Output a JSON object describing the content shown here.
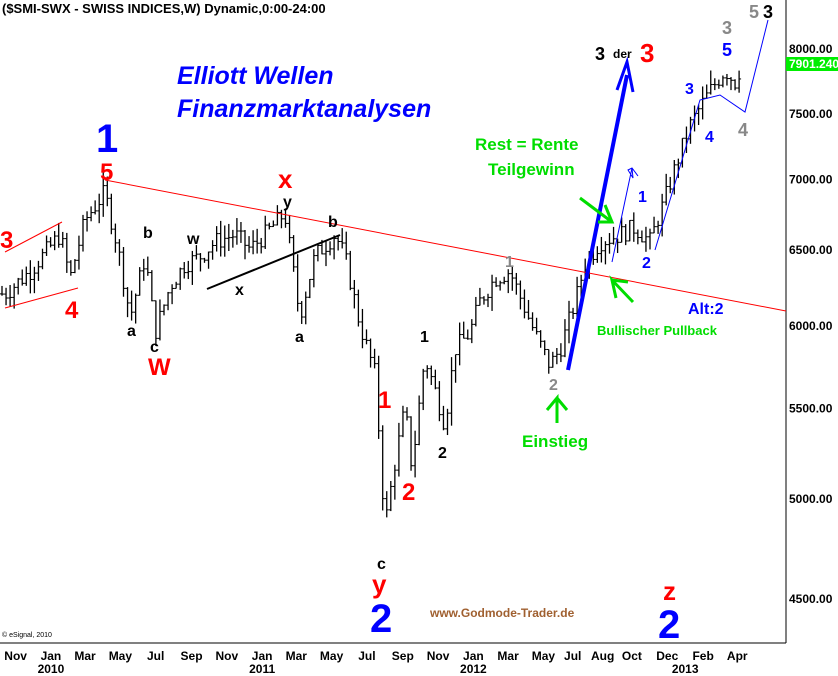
{
  "chart_data": {
    "type": "ohlc",
    "title": "($SMI-SWX - SWISS INDICES,W) Dynamic,0:00-24:00",
    "subtitle_lines": [
      "Elliott Wellen",
      "Finanzmarktanalysen"
    ],
    "y_scale": "log",
    "ylim": [
      4300,
      8500
    ],
    "yticks": [
      "8000.00",
      "7500.00",
      "7000.00",
      "6500.00",
      "6000.00",
      "5500.00",
      "5000.00",
      "4500.00"
    ],
    "ytick_values": [
      8000,
      7500,
      7000,
      6500,
      6000,
      5500,
      5000,
      4500
    ],
    "last_price": "7901.240",
    "last_price_color": "#00ee00",
    "xticks": [
      "Nov",
      "Jan",
      "Mar",
      "May",
      "Jul",
      "Sep",
      "Nov",
      "Jan",
      "Mar",
      "May",
      "Jul",
      "Sep",
      "Nov",
      "Jan",
      "Mar",
      "May",
      "Jul",
      "Aug",
      "Oct",
      "Dec",
      "Feb",
      "Apr"
    ],
    "xtick_dates": [
      "2009-11-01",
      "2010-01-01",
      "2010-03-01",
      "2010-05-01",
      "2010-07-01",
      "2010-09-01",
      "2010-11-01",
      "2011-01-01",
      "2011-03-01",
      "2011-05-01",
      "2011-07-01",
      "2011-09-01",
      "2011-11-01",
      "2012-01-01",
      "2012-03-01",
      "2012-05-01",
      "2012-07-01",
      "2012-08-01",
      "2012-10-01",
      "2012-12-01",
      "2013-02-01",
      "2013-04-01"
    ],
    "year_labels": [
      "2010",
      "2011",
      "2012",
      "2013"
    ],
    "grid": false,
    "series": [
      {
        "dates": [
          "2009-10-14",
          "2009-11-26",
          "2010-01-17",
          "2010-02-03",
          "2010-03-01",
          "2010-04-04",
          "2010-04-27",
          "2010-05-18",
          "2010-06-13",
          "2010-06-30",
          "2010-07-26",
          "2010-08-21",
          "2010-09-16",
          "2010-10-12",
          "2010-11-15",
          "2010-12-11",
          "2011-01-06",
          "2011-02-09",
          "2011-03-07",
          "2011-04-02",
          "2011-05-07",
          "2011-05-24",
          "2011-06-19",
          "2011-07-15",
          "2011-08-01",
          "2011-08-19",
          "2011-09-05",
          "2011-09-17",
          "2011-10-09",
          "2011-10-27",
          "2011-11-13",
          "2011-11-30",
          "2011-12-26",
          "2012-01-12",
          "2012-02-07",
          "2012-03-04",
          "2012-03-25",
          "2012-04-16",
          "2012-05-12",
          "2012-05-30",
          "2012-06-25",
          "2012-07-12",
          "2012-08-07",
          "2012-09-10",
          "2012-10-06",
          "2012-11-01",
          "2012-11-27",
          "2012-12-20",
          "2013-01-09",
          "2013-01-27",
          "2013-02-16",
          "2013-03-11",
          "2013-03-28",
          "2013-04-09"
        ],
        "close": [
          6200,
          6350,
          6600,
          6300,
          6700,
          6900,
          6500,
          6050,
          6450,
          5950,
          6250,
          6400,
          6450,
          6550,
          6600,
          6500,
          6600,
          6750,
          6050,
          6450,
          6600,
          6450,
          6000,
          5700,
          4850,
          5200,
          5500,
          5150,
          5800,
          5600,
          5400,
          5850,
          5950,
          6150,
          6300,
          6350,
          6150,
          5950,
          5750,
          5850,
          6150,
          6400,
          6550,
          6600,
          6650,
          6550,
          6850,
          7150,
          7400,
          7550,
          7700,
          7850,
          7750,
          7900
        ]
      }
    ],
    "annotations": {
      "wave_labels": [
        "3",
        "4",
        "1",
        "5",
        "b",
        "w",
        "a",
        "c",
        "W",
        "x",
        "x",
        "y",
        "b",
        "a",
        "1",
        "2",
        "1",
        "2",
        "c",
        "y",
        "2",
        "1",
        "2",
        "3",
        "der",
        "3",
        "1",
        "2",
        "3",
        "4",
        "5",
        "3",
        "4",
        "5",
        "3",
        "z",
        "2"
      ],
      "rest": "Rest = Rente",
      "teilgewinn": "Teilgewinn",
      "einstieg": "Einstieg",
      "pullback": "Bullischer Pullback",
      "alt": "Alt:2"
    },
    "colors": {
      "red": "#ff0000",
      "blue": "#0000ff",
      "green": "#00dd00",
      "grey": "#888888",
      "black": "#000000"
    }
  },
  "watermark": "www.Godmode-Trader.de",
  "copyright": "© eSignal, 2010"
}
